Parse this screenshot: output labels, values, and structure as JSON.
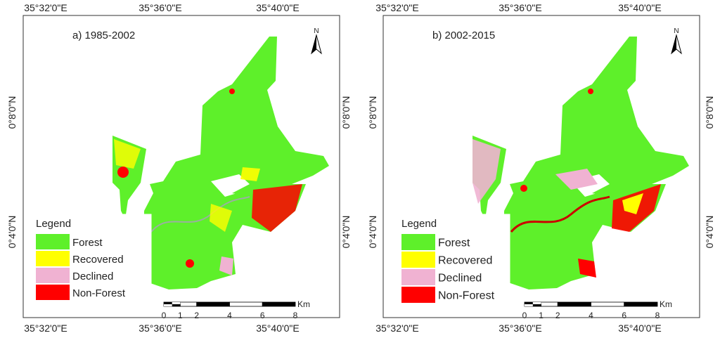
{
  "longitude_labels": [
    "35°32'0\"E",
    "35°36'0\"E",
    "35°40'0\"E"
  ],
  "latitude_labels": [
    "0°8'0\"N",
    "0°4'0\"N"
  ],
  "panels": [
    {
      "title": "a) 1985-2002",
      "north": "N",
      "legend_title": "Legend",
      "legend": [
        {
          "label": "Forest",
          "color": "#5ef02a"
        },
        {
          "label": "Recovered",
          "color": "#ffff00"
        },
        {
          "label": "Declined",
          "color": "#f0b2d2"
        },
        {
          "label": "Non-Forest",
          "color": "#ff0000"
        }
      ],
      "scale_unit": "Km",
      "scale_ticks": [
        0,
        1,
        2,
        4,
        6,
        8
      ]
    },
    {
      "title": "b) 2002-2015",
      "north": "N",
      "legend_title": "Legend",
      "legend": [
        {
          "label": "Forest",
          "color": "#5ef02a"
        },
        {
          "label": "Recovered",
          "color": "#ffff00"
        },
        {
          "label": "Declined",
          "color": "#f0b2d2"
        },
        {
          "label": "Non-Forest",
          "color": "#ff0000"
        }
      ],
      "scale_unit": "Km",
      "scale_ticks": [
        0,
        1,
        2,
        4,
        6,
        8
      ]
    }
  ]
}
